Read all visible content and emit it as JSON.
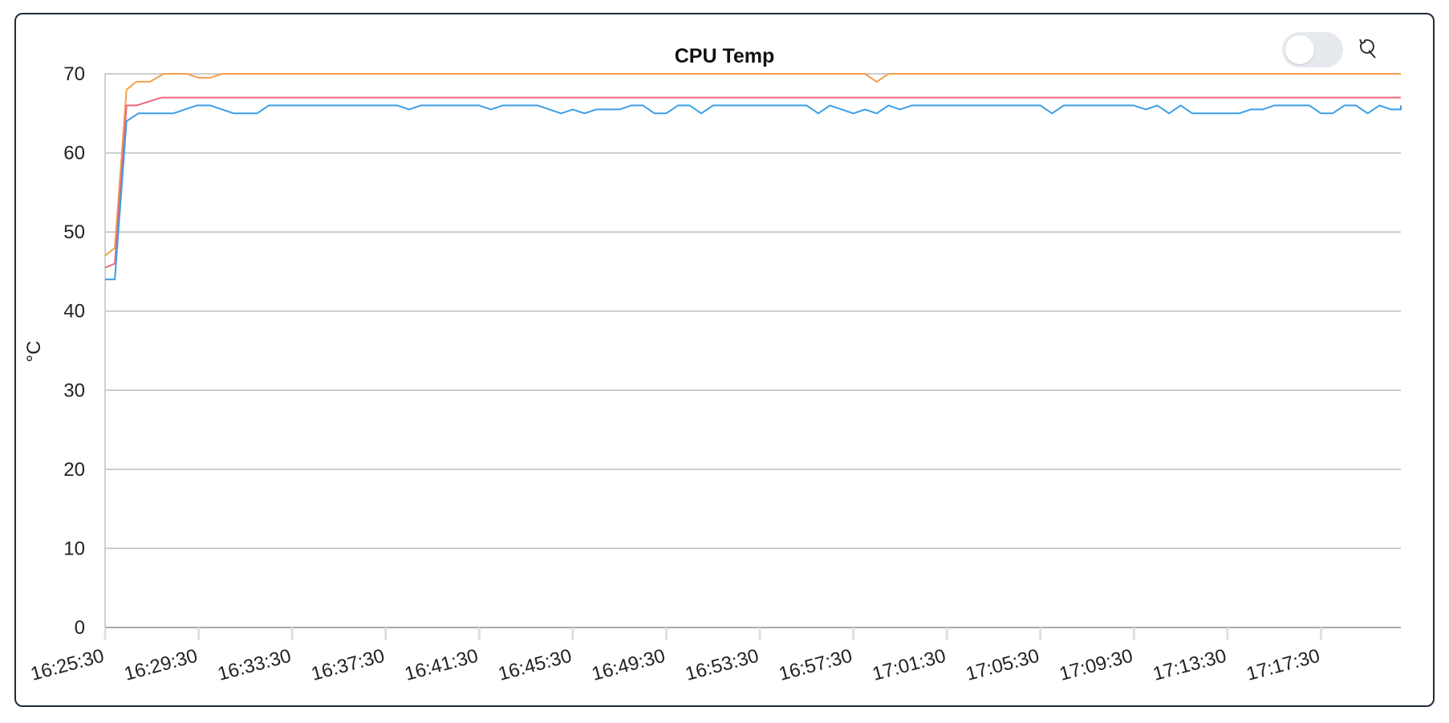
{
  "chart_data": {
    "type": "line",
    "title": "CPU Temp",
    "ylabel": "°C",
    "xlabel": "",
    "ylim": [
      0,
      70
    ],
    "yticks": [
      "0",
      "10",
      "20",
      "30",
      "40",
      "50",
      "60",
      "70"
    ],
    "xticks": [
      "16:25:30",
      "16:29:30",
      "16:33:30",
      "16:37:30",
      "16:41:30",
      "16:45:30",
      "16:49:30",
      "16:53:30",
      "16:57:30",
      "17:01:30",
      "17:05:30",
      "17:09:30",
      "17:13:30",
      "17:17:30"
    ],
    "x_start": "16:25:30",
    "x_end": "17:20:55",
    "grid": true,
    "legend": "none",
    "series": [
      {
        "color": "#f5a04a",
        "points": [
          [
            "16:25:30",
            47
          ],
          [
            "16:25:55",
            48
          ],
          [
            "16:26:25",
            68
          ],
          [
            "16:26:50",
            69
          ],
          [
            "16:27:25",
            69
          ],
          [
            "16:28:00",
            70
          ],
          [
            "16:29:00",
            70
          ],
          [
            "16:29:30",
            69.5
          ],
          [
            "16:30:00",
            69.5
          ],
          [
            "16:30:30",
            70
          ],
          [
            "16:58:00",
            70
          ],
          [
            "16:58:30",
            69
          ],
          [
            "16:59:00",
            70
          ],
          [
            "17:20:55",
            70
          ]
        ]
      },
      {
        "color": "#f0667a",
        "points": [
          [
            "16:25:30",
            45.5
          ],
          [
            "16:25:55",
            46
          ],
          [
            "16:26:25",
            66
          ],
          [
            "16:26:50",
            66
          ],
          [
            "16:27:55",
            67
          ],
          [
            "17:20:55",
            67
          ]
        ]
      },
      {
        "color": "#3a9ee8",
        "points": [
          [
            "16:25:30",
            44
          ],
          [
            "16:25:55",
            44
          ],
          [
            "16:26:25",
            64
          ],
          [
            "16:26:55",
            65
          ],
          [
            "16:28:25",
            65
          ],
          [
            "16:29:25",
            66
          ],
          [
            "16:30:00",
            66
          ],
          [
            "16:31:00",
            65
          ],
          [
            "16:32:00",
            65
          ],
          [
            "16:32:30",
            66
          ],
          [
            "16:38:00",
            66
          ],
          [
            "16:38:30",
            65.5
          ],
          [
            "16:39:00",
            66
          ],
          [
            "16:41:30",
            66
          ],
          [
            "16:42:00",
            65.5
          ],
          [
            "16:42:30",
            66
          ],
          [
            "16:44:00",
            66
          ],
          [
            "16:45:00",
            65
          ],
          [
            "16:45:30",
            65.5
          ],
          [
            "16:46:00",
            65
          ],
          [
            "16:46:30",
            65.5
          ],
          [
            "16:47:30",
            65.5
          ],
          [
            "16:48:00",
            66
          ],
          [
            "16:48:30",
            66
          ],
          [
            "16:49:00",
            65
          ],
          [
            "16:49:30",
            65
          ],
          [
            "16:50:00",
            66
          ],
          [
            "16:50:30",
            66
          ],
          [
            "16:51:00",
            65
          ],
          [
            "16:51:30",
            66
          ],
          [
            "16:55:30",
            66
          ],
          [
            "16:56:00",
            65
          ],
          [
            "16:56:30",
            66
          ],
          [
            "16:57:00",
            65.5
          ],
          [
            "16:57:30",
            65
          ],
          [
            "16:58:00",
            65.5
          ],
          [
            "16:58:30",
            65
          ],
          [
            "16:59:00",
            66
          ],
          [
            "16:59:30",
            65.5
          ],
          [
            "17:00:00",
            66
          ],
          [
            "17:05:30",
            66
          ],
          [
            "17:06:00",
            65
          ],
          [
            "17:06:30",
            66
          ],
          [
            "17:09:30",
            66
          ],
          [
            "17:10:00",
            65.5
          ],
          [
            "17:10:30",
            66
          ],
          [
            "17:11:00",
            65
          ],
          [
            "17:11:30",
            66
          ],
          [
            "17:12:00",
            65
          ],
          [
            "17:14:00",
            65
          ],
          [
            "17:14:30",
            65.5
          ],
          [
            "17:15:00",
            65.5
          ],
          [
            "17:15:30",
            66
          ],
          [
            "17:17:00",
            66
          ],
          [
            "17:17:30",
            65
          ],
          [
            "17:18:00",
            65
          ],
          [
            "17:18:30",
            66
          ],
          [
            "17:19:00",
            66
          ],
          [
            "17:19:30",
            65
          ],
          [
            "17:20:00",
            66
          ],
          [
            "17:20:30",
            65.5
          ],
          [
            "17:21:00",
            65.5
          ],
          [
            "17:21:30",
            66
          ],
          [
            "17:24:00",
            66
          ]
        ]
      }
    ]
  },
  "controls": {
    "toggle_icon": "toggle-switch",
    "reset_icon": "reset-zoom-icon"
  }
}
